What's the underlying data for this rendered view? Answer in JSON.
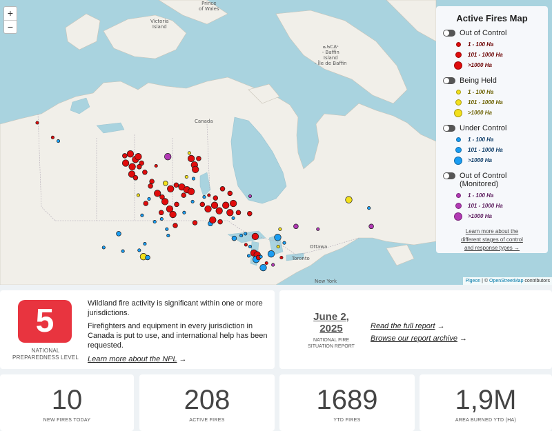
{
  "map": {
    "zoom_in": "+",
    "zoom_out": "−",
    "labels": {
      "prince_of_wales": "Prince\nof Wales",
      "victoria_island": "Victoria\nIsland",
      "baffin_island": "ᓇᑲᑕᐃᒻ\n- Baffin\nIsland\n- Île de Baffin",
      "canada": "Canada",
      "ottawa": "Ottawa",
      "toronto": "Toronto",
      "new_york": "New York"
    },
    "attribution": {
      "pigeon": "Pigeon",
      "sep": " | © ",
      "osm": "OpenStreetMap",
      "contributors": " contributors"
    },
    "colors": {
      "water": "#a9d3df",
      "land": "#f1efe9",
      "out_of_control": "#e00c0c",
      "being_held": "#f3e01b",
      "under_control": "#1a9df2",
      "monitored": "#b23ab4"
    },
    "fires": [
      {
        "s": "oc",
        "z": "s",
        "lon": -139.8,
        "lat": 63.2
      },
      {
        "s": "oc",
        "z": "s",
        "lon": -136.5,
        "lat": 61.6
      },
      {
        "s": "uc",
        "z": "s",
        "lon": -135.3,
        "lat": 61.2
      },
      {
        "s": "oc",
        "z": "m",
        "lon": -121.1,
        "lat": 59.6
      },
      {
        "s": "oc",
        "z": "l",
        "lon": -119.9,
        "lat": 59.8
      },
      {
        "s": "oc",
        "z": "l",
        "lon": -118.8,
        "lat": 59.2
      },
      {
        "s": "oc",
        "z": "l",
        "lon": -118.2,
        "lat": 59.5
      },
      {
        "s": "oc",
        "z": "m",
        "lon": -117.5,
        "lat": 58.8
      },
      {
        "s": "oc",
        "z": "l",
        "lon": -120.9,
        "lat": 58.8
      },
      {
        "s": "oc",
        "z": "l",
        "lon": -119.5,
        "lat": 58.4
      },
      {
        "s": "oc",
        "z": "m",
        "lon": -118.0,
        "lat": 58.4
      },
      {
        "s": "oc",
        "z": "l",
        "lon": -119.6,
        "lat": 57.6
      },
      {
        "s": "oc",
        "z": "m",
        "lon": -118.8,
        "lat": 57.2
      },
      {
        "s": "oc",
        "z": "m",
        "lon": -116.8,
        "lat": 57.8
      },
      {
        "s": "oc",
        "z": "s",
        "lon": -114.4,
        "lat": 58.5
      },
      {
        "s": "mon",
        "z": "l",
        "lon": -111.9,
        "lat": 59.5
      },
      {
        "s": "bh",
        "z": "s",
        "lon": -107.3,
        "lat": 59.9
      },
      {
        "s": "oc",
        "z": "l",
        "lon": -106.9,
        "lat": 59.3
      },
      {
        "s": "oc",
        "z": "l",
        "lon": -106.2,
        "lat": 58.6
      },
      {
        "s": "oc",
        "z": "m",
        "lon": -105.3,
        "lat": 59.3
      },
      {
        "s": "oc",
        "z": "l",
        "lon": -106.0,
        "lat": 58.1
      },
      {
        "s": "bh",
        "z": "s",
        "lon": -107.9,
        "lat": 57.3
      },
      {
        "s": "uc",
        "z": "s",
        "lon": -106.4,
        "lat": 57.1
      },
      {
        "s": "bh",
        "z": "m",
        "lon": -112.4,
        "lat": 56.6
      },
      {
        "s": "oc",
        "z": "m",
        "lon": -115.3,
        "lat": 56.8
      },
      {
        "s": "oc",
        "z": "m",
        "lon": -115.6,
        "lat": 56.3
      },
      {
        "s": "oc",
        "z": "l",
        "lon": -111.3,
        "lat": 56.0
      },
      {
        "s": "oc",
        "z": "m",
        "lon": -110.1,
        "lat": 56.4
      },
      {
        "s": "oc",
        "z": "l",
        "lon": -108.9,
        "lat": 56.2
      },
      {
        "s": "oc",
        "z": "l",
        "lon": -107.8,
        "lat": 55.9
      },
      {
        "s": "oc",
        "z": "l",
        "lon": -106.9,
        "lat": 55.7
      },
      {
        "s": "oc",
        "z": "m",
        "lon": -108.5,
        "lat": 55.3
      },
      {
        "s": "bh",
        "z": "s",
        "lon": -118.2,
        "lat": 55.3
      },
      {
        "s": "oc",
        "z": "l",
        "lon": -114.1,
        "lat": 55.5
      },
      {
        "s": "oc",
        "z": "m",
        "lon": -113.1,
        "lat": 55.1
      },
      {
        "s": "uc",
        "z": "s",
        "lon": -115.9,
        "lat": 54.9
      },
      {
        "s": "oc",
        "z": "m",
        "lon": -116.6,
        "lat": 54.4
      },
      {
        "s": "oc",
        "z": "l",
        "lon": -112.5,
        "lat": 54.6
      },
      {
        "s": "oc",
        "z": "m",
        "lon": -110.0,
        "lat": 54.3
      },
      {
        "s": "uc",
        "z": "s",
        "lon": -104.1,
        "lat": 55.1
      },
      {
        "s": "oc",
        "z": "s",
        "lon": -103.1,
        "lat": 55.3
      },
      {
        "s": "oc",
        "z": "m",
        "lon": -101.7,
        "lat": 55.0
      },
      {
        "s": "oc",
        "z": "m",
        "lon": -100.2,
        "lat": 56.0
      },
      {
        "s": "oc",
        "z": "m",
        "lon": -98.6,
        "lat": 55.5
      },
      {
        "s": "oc",
        "z": "l",
        "lon": -97.9,
        "lat": 54.4
      },
      {
        "s": "uc",
        "z": "s",
        "lon": -106.6,
        "lat": 54.6
      },
      {
        "s": "oc",
        "z": "m",
        "lon": -104.5,
        "lat": 54.3
      },
      {
        "s": "oc",
        "z": "l",
        "lon": -103.3,
        "lat": 53.8
      },
      {
        "s": "oc",
        "z": "l",
        "lon": -101.9,
        "lat": 54.2
      },
      {
        "s": "oc",
        "z": "l",
        "lon": -100.9,
        "lat": 53.6
      },
      {
        "s": "oc",
        "z": "l",
        "lon": -99.5,
        "lat": 54.2
      },
      {
        "s": "oc",
        "z": "l",
        "lon": -98.6,
        "lat": 53.4
      },
      {
        "s": "oc",
        "z": "m",
        "lon": -96.8,
        "lat": 53.4
      },
      {
        "s": "oc",
        "z": "m",
        "lon": -94.4,
        "lat": 53.3
      },
      {
        "s": "mon",
        "z": "s",
        "lon": -94.3,
        "lat": 55.2
      },
      {
        "s": "oc",
        "z": "m",
        "lon": -113.3,
        "lat": 53.4
      },
      {
        "s": "oc",
        "z": "l",
        "lon": -111.5,
        "lat": 53.8
      },
      {
        "s": "oc",
        "z": "l",
        "lon": -110.8,
        "lat": 53.2
      },
      {
        "s": "uc",
        "z": "s",
        "lon": -108.4,
        "lat": 53.4
      },
      {
        "s": "oc",
        "z": "m",
        "lon": -106.1,
        "lat": 52.3
      },
      {
        "s": "uc",
        "z": "m",
        "lon": -102.8,
        "lat": 52.2
      },
      {
        "s": "oc",
        "z": "l",
        "lon": -102.3,
        "lat": 52.6
      },
      {
        "s": "oc",
        "z": "m",
        "lon": -100.7,
        "lat": 52.4
      },
      {
        "s": "uc",
        "z": "s",
        "lon": -97.9,
        "lat": 52.8
      },
      {
        "s": "uc",
        "z": "s",
        "lon": -117.4,
        "lat": 53.1
      },
      {
        "s": "uc",
        "z": "s",
        "lon": -114.7,
        "lat": 52.4
      },
      {
        "s": "uc",
        "z": "s",
        "lon": -113.2,
        "lat": 52.7
      },
      {
        "s": "oc",
        "z": "m",
        "lon": -110.3,
        "lat": 52.0
      },
      {
        "s": "uc",
        "z": "s",
        "lon": -112.1,
        "lat": 51.6
      },
      {
        "s": "uc",
        "z": "s",
        "lon": -111.8,
        "lat": 50.9
      },
      {
        "s": "uc",
        "z": "m",
        "lon": -122.4,
        "lat": 51.1
      },
      {
        "s": "uc",
        "z": "s",
        "lon": -125.6,
        "lat": 49.6
      },
      {
        "s": "uc",
        "z": "s",
        "lon": -121.5,
        "lat": 49.2
      },
      {
        "s": "bh",
        "z": "l",
        "lon": -117.1,
        "lat": 48.6
      },
      {
        "s": "uc",
        "z": "m",
        "lon": -116.2,
        "lat": 48.5
      },
      {
        "s": "uc",
        "z": "s",
        "lon": -118.0,
        "lat": 49.3
      },
      {
        "s": "uc",
        "z": "s",
        "lon": -116.8,
        "lat": 50.0
      },
      {
        "s": "uc",
        "z": "m",
        "lon": -97.7,
        "lat": 50.6
      },
      {
        "s": "uc",
        "z": "s",
        "lon": -96.2,
        "lat": 50.9
      },
      {
        "s": "uc",
        "z": "s",
        "lon": -95.3,
        "lat": 51.1
      },
      {
        "s": "oc",
        "z": "l",
        "lon": -93.2,
        "lat": 50.8
      },
      {
        "s": "oc",
        "z": "s",
        "lon": -95.2,
        "lat": 49.9
      },
      {
        "s": "uc",
        "z": "s",
        "lon": -94.3,
        "lat": 49.7
      },
      {
        "s": "uc",
        "z": "s",
        "lon": -94.6,
        "lat": 48.7
      },
      {
        "s": "oc",
        "z": "l",
        "lon": -93.5,
        "lat": 49.0
      },
      {
        "s": "oc",
        "z": "l",
        "lon": -92.8,
        "lat": 48.8
      },
      {
        "s": "uc",
        "z": "l",
        "lon": -93.0,
        "lat": 48.3
      },
      {
        "s": "oc",
        "z": "m",
        "lon": -92.5,
        "lat": 48.5
      },
      {
        "s": "uc",
        "z": "s",
        "lon": -92.0,
        "lat": 48.6
      },
      {
        "s": "uc",
        "z": "l",
        "lon": -89.8,
        "lat": 48.9
      },
      {
        "s": "uc",
        "z": "l",
        "lon": -91.5,
        "lat": 47.4
      },
      {
        "s": "oc",
        "z": "s",
        "lon": -90.8,
        "lat": 47.9
      },
      {
        "s": "mon",
        "z": "s",
        "lon": -89.4,
        "lat": 47.7
      },
      {
        "s": "oc",
        "z": "s",
        "lon": -87.6,
        "lat": 48.5
      },
      {
        "s": "bh",
        "z": "s",
        "lon": -88.3,
        "lat": 49.7
      },
      {
        "s": "uc",
        "z": "s",
        "lon": -87.0,
        "lat": 50.1
      },
      {
        "s": "uc",
        "z": "l",
        "lon": -88.4,
        "lat": 50.7
      },
      {
        "s": "bh",
        "z": "s",
        "lon": -87.9,
        "lat": 51.6
      },
      {
        "s": "mon",
        "z": "m",
        "lon": -84.5,
        "lat": 51.9
      },
      {
        "s": "mon",
        "z": "s",
        "lon": -79.8,
        "lat": 51.6
      },
      {
        "s": "mon",
        "z": "s",
        "lon": -83.1,
        "lat": 44.8
      },
      {
        "s": "bh",
        "z": "l",
        "lon": -73.2,
        "lat": 54.8
      },
      {
        "s": "uc",
        "z": "s",
        "lon": -68.9,
        "lat": 53.9
      },
      {
        "s": "mon",
        "z": "m",
        "lon": -68.4,
        "lat": 51.9
      }
    ]
  },
  "legend": {
    "title": "Active Fires Map",
    "groups": [
      {
        "label": "Out of Control",
        "items": [
          "1 - 100 Ha",
          "101 - 1000 Ha",
          ">1000 Ha"
        ]
      },
      {
        "label": "Being Held",
        "items": [
          "1 - 100 Ha",
          "101 - 1000 Ha",
          ">1000 Ha"
        ]
      },
      {
        "label": "Under Control",
        "items": [
          "1 - 100 Ha",
          "101 - 1000 Ha",
          ">1000 Ha"
        ]
      },
      {
        "label": "Out of Control\n(Monitored)",
        "items": [
          "1 - 100 Ha",
          "101 - 1000 Ha",
          ">1000 Ha"
        ]
      }
    ],
    "learn_more": "Learn more about the\ndifferent stages of control\nand response types →"
  },
  "npl": {
    "level": "5",
    "caption": "NATIONAL\nPREPAREDNESS LEVEL",
    "p1": "Wildland fire activity is significant within one or more jurisdictions.",
    "p2": "Firefighters and equipment in every jurisdiction in Canada is put to use, and international help has been requested.",
    "link": "Learn more about the NPL",
    "arrow": "→"
  },
  "report": {
    "date": "June 2,\n2025",
    "caption": "NATIONAL FIRE\nSITUATION REPORT",
    "read": "Read the full report",
    "archive": "Browse our report archive",
    "arrow": "→"
  },
  "stats": [
    {
      "value": "10",
      "label": "NEW FIRES TODAY"
    },
    {
      "value": "208",
      "label": "ACTIVE FIRES"
    },
    {
      "value": "1689",
      "label": "YTD FIRES"
    },
    {
      "value": "1,9M",
      "label": "AREA BURNED YTD (HA)"
    }
  ]
}
